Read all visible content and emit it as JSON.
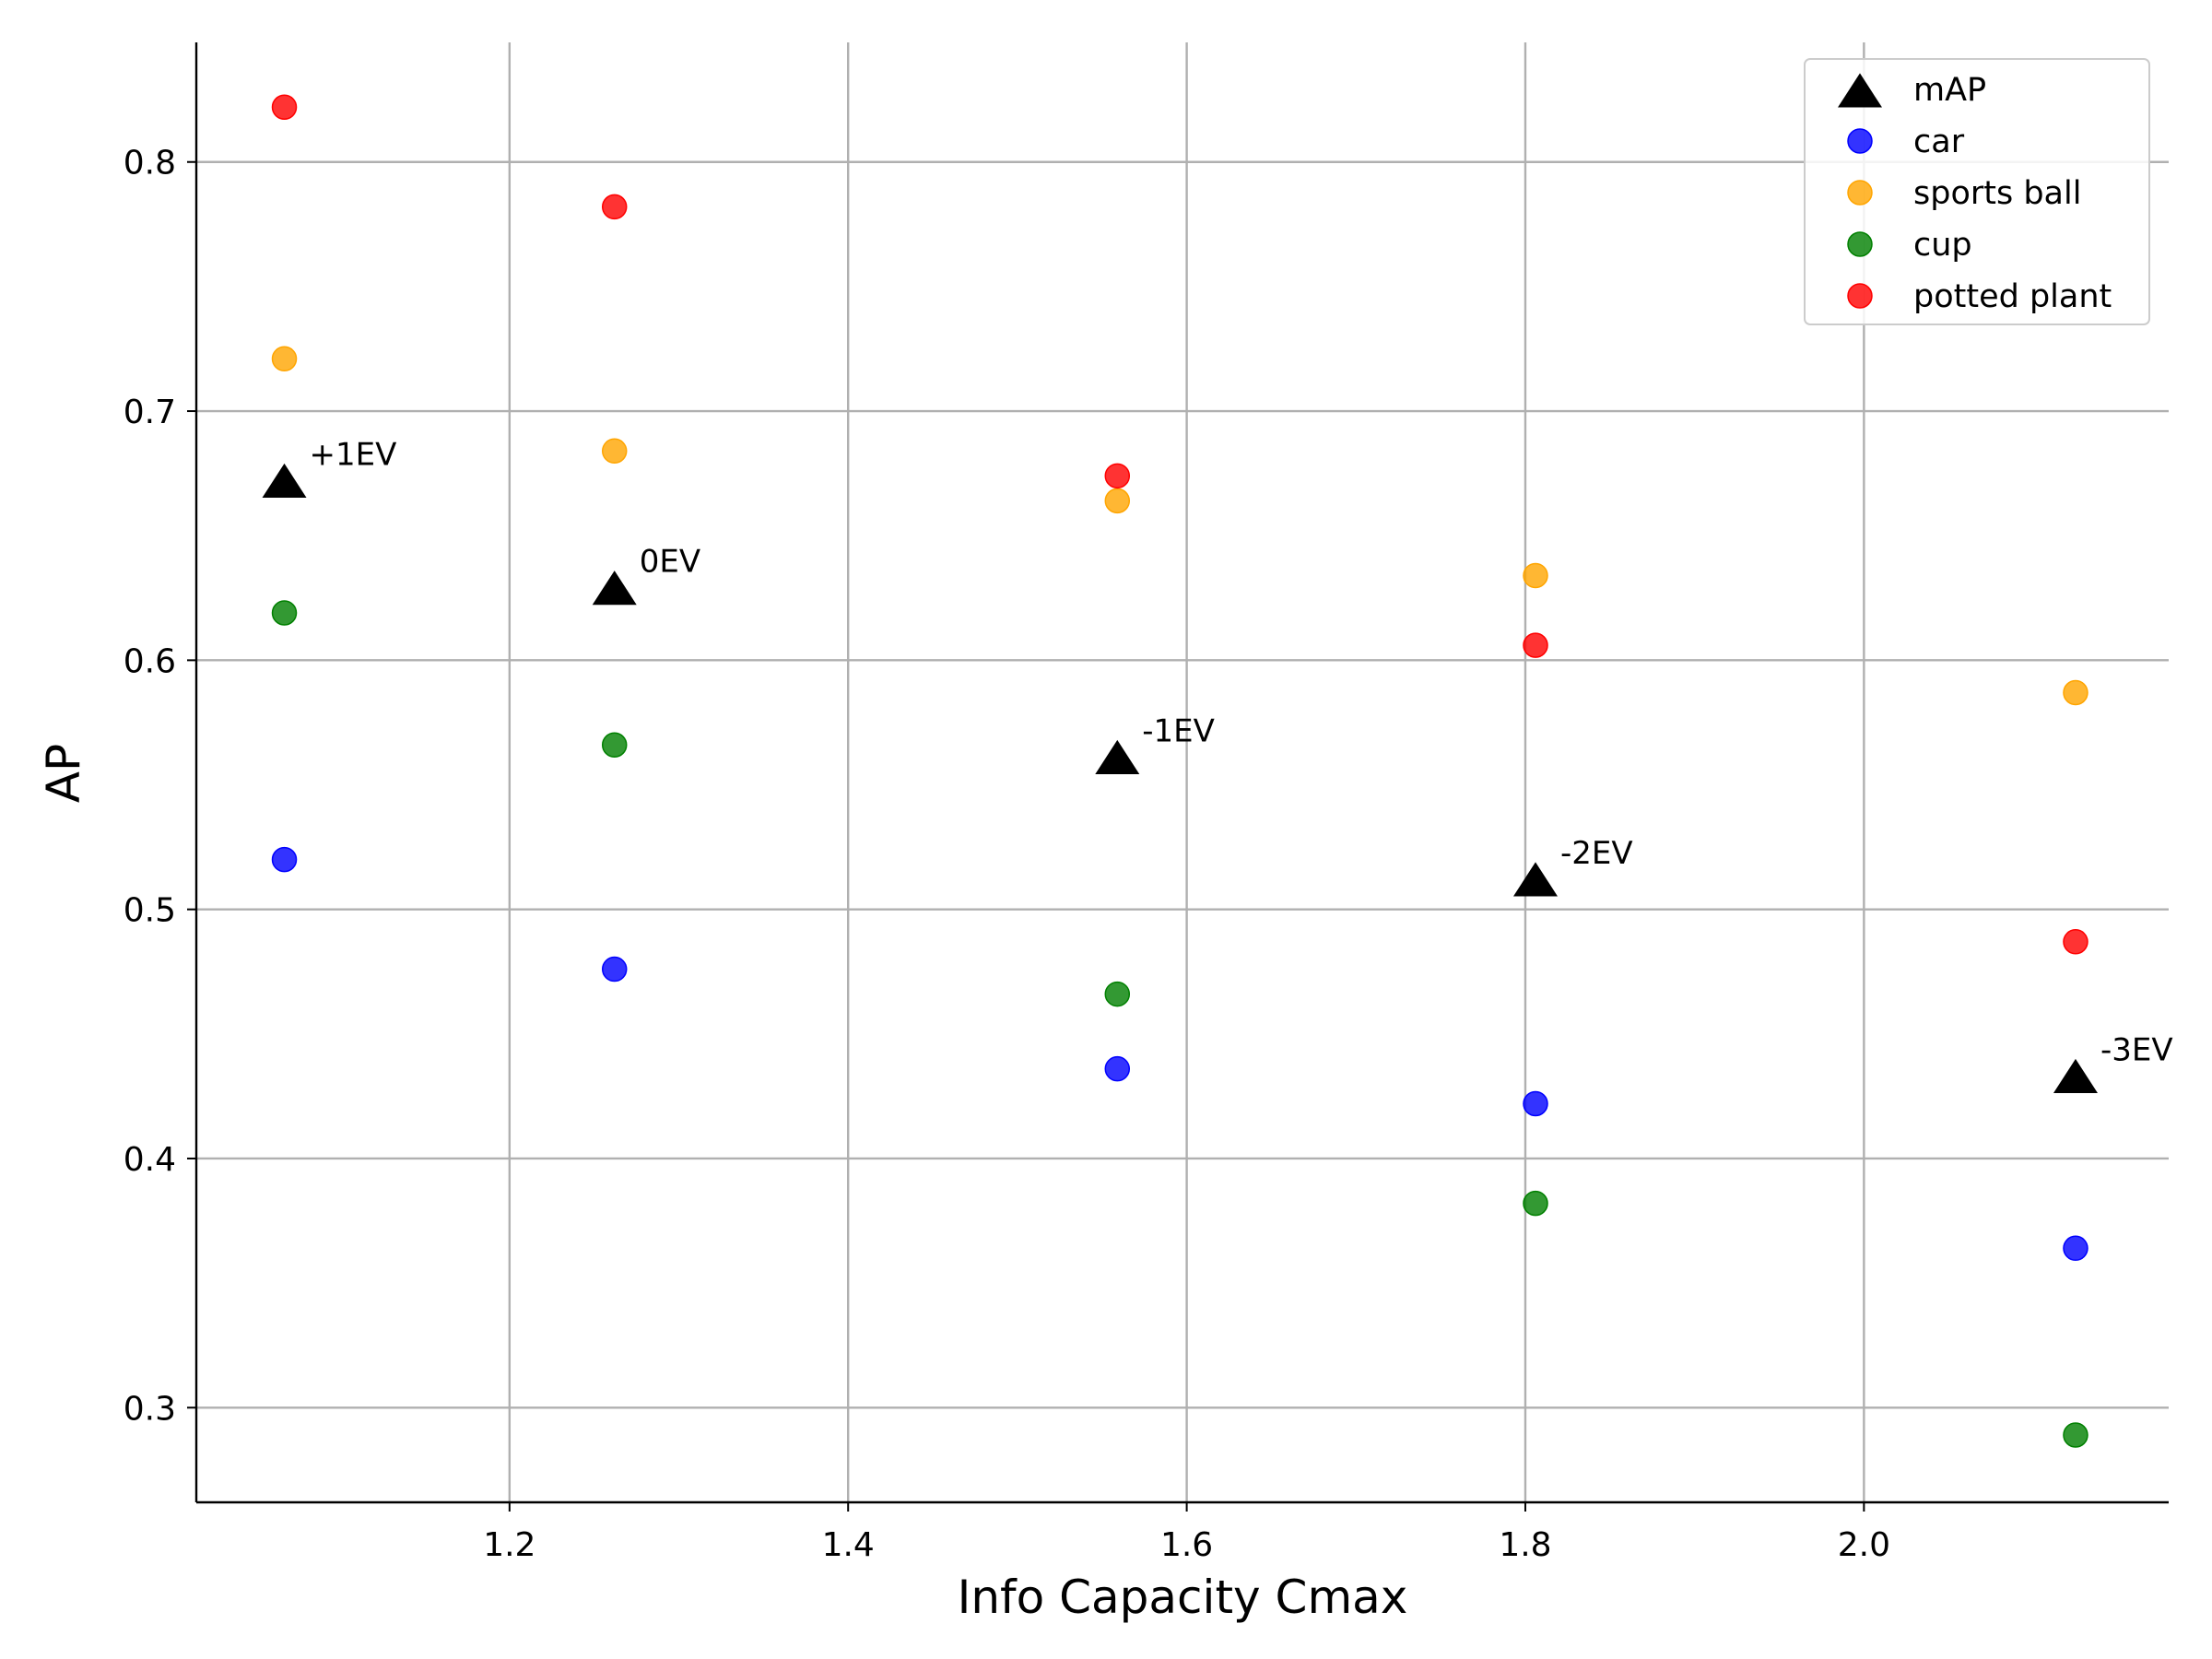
{
  "chart_data": {
    "type": "scatter",
    "title": "",
    "xlabel": "Info Capacity Cmax",
    "ylabel": "AP",
    "xlim": [
      1.015,
      2.18
    ],
    "ylim": [
      0.262,
      0.848
    ],
    "xticks": [
      1.2,
      1.4,
      1.6,
      1.8,
      2.0
    ],
    "xtick_labels": [
      "1.2",
      "1.4",
      "1.6",
      "1.8",
      "2.0"
    ],
    "yticks": [
      0.3,
      0.4,
      0.5,
      0.6,
      0.7,
      0.8
    ],
    "ytick_labels": [
      "0.3",
      "0.4",
      "0.5",
      "0.6",
      "0.7",
      "0.8"
    ],
    "grid": true,
    "legend_position": "top-right",
    "x": [
      1.067,
      1.262,
      1.559,
      1.806,
      2.125
    ],
    "series": [
      {
        "name": "mAP",
        "marker": "triangle",
        "color": "#000000",
        "values": [
          0.671,
          0.628,
          0.56,
          0.511,
          0.432
        ]
      },
      {
        "name": "car",
        "marker": "circle",
        "color": "#0000ff",
        "values": [
          0.52,
          0.476,
          0.436,
          0.422,
          0.364
        ]
      },
      {
        "name": "sports ball",
        "marker": "circle",
        "color": "#ffa500",
        "values": [
          0.721,
          0.684,
          0.664,
          0.634,
          0.587
        ]
      },
      {
        "name": "cup",
        "marker": "circle",
        "color": "#008000",
        "values": [
          0.619,
          0.566,
          0.466,
          0.382,
          0.289
        ]
      },
      {
        "name": "potted plant",
        "marker": "circle",
        "color": "#ff0000",
        "values": [
          0.822,
          0.782,
          0.674,
          0.606,
          0.487
        ]
      }
    ],
    "annotations": [
      {
        "text": "+1EV",
        "x": 1.067,
        "y": 0.671
      },
      {
        "text": "0EV",
        "x": 1.262,
        "y": 0.628
      },
      {
        "text": "-1EV",
        "x": 1.559,
        "y": 0.56
      },
      {
        "text": "-2EV",
        "x": 1.806,
        "y": 0.511
      },
      {
        "text": "-3EV",
        "x": 2.125,
        "y": 0.432
      }
    ]
  }
}
